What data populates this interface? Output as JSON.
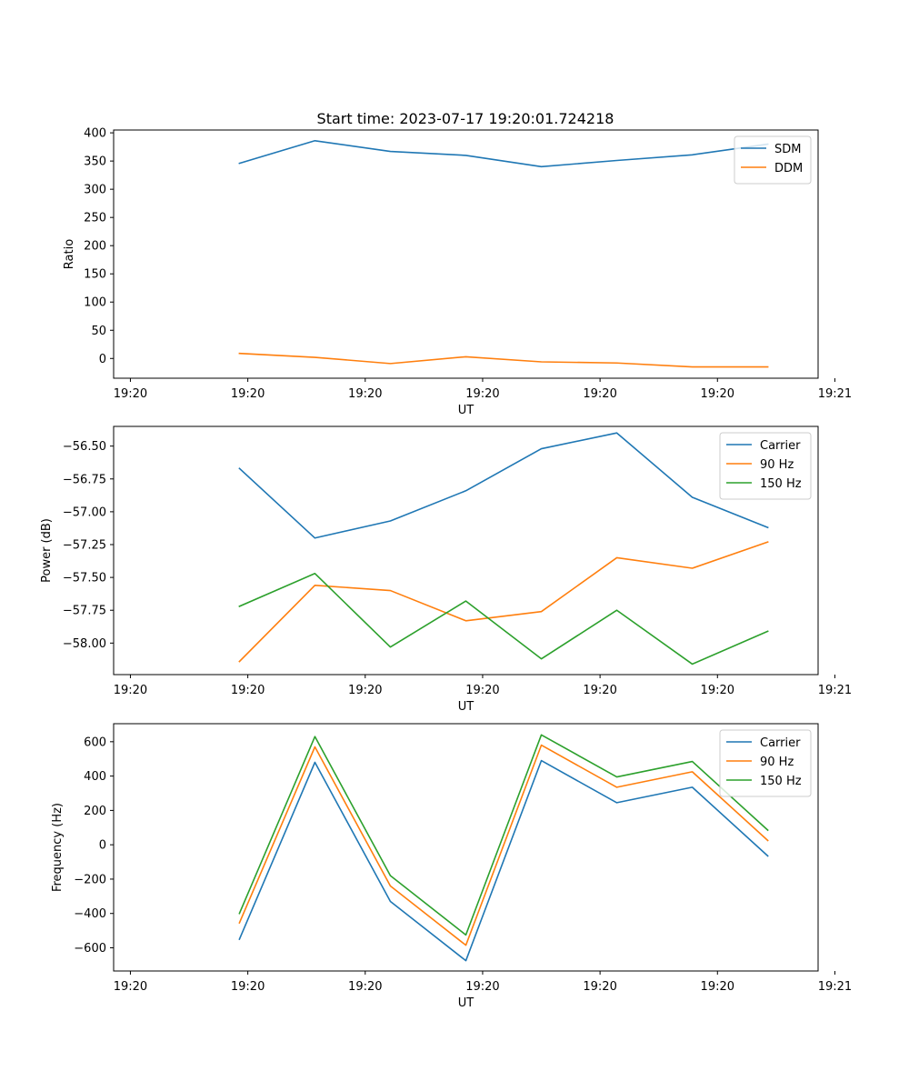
{
  "figure_title": "Start time: 2023-07-17 19:20:01.724218",
  "colors": {
    "blue": "#1f77b4",
    "orange": "#ff7f0e",
    "green": "#2ca02c"
  },
  "chart_data": [
    {
      "type": "line",
      "title": "Start time: 2023-07-17 19:20:01.724218",
      "xlabel": "UT",
      "ylabel": "Ratio",
      "x": [
        0.75,
        1.2,
        1.65,
        2.1,
        2.55,
        3.0,
        3.45,
        3.9
      ],
      "xlim": [
        0.0,
        4.2
      ],
      "xticks": [
        0.1,
        0.8,
        1.5,
        2.2,
        2.9,
        3.6,
        4.3
      ],
      "xtick_labels": [
        "19:20",
        "19:20",
        "19:20",
        "19:20",
        "19:20",
        "19:20",
        "19:21"
      ],
      "ylim": [
        -35,
        405
      ],
      "yticks": [
        0,
        50,
        100,
        150,
        200,
        250,
        300,
        350,
        400
      ],
      "ytick_labels": [
        "0",
        "50",
        "100",
        "150",
        "200",
        "250",
        "300",
        "350",
        "400"
      ],
      "legend": "top-right",
      "series": [
        {
          "name": "SDM",
          "color": "#1f77b4",
          "values": [
            346,
            386,
            367,
            360,
            340,
            351,
            361,
            380
          ]
        },
        {
          "name": "DDM",
          "color": "#ff7f0e",
          "values": [
            9,
            2,
            -9,
            3,
            -6,
            -8,
            -15,
            -15
          ]
        }
      ]
    },
    {
      "type": "line",
      "title": "",
      "xlabel": "UT",
      "ylabel": "Power (dB)",
      "x": [
        0.75,
        1.2,
        1.65,
        2.1,
        2.55,
        3.0,
        3.45,
        3.9
      ],
      "xlim": [
        0.0,
        4.2
      ],
      "xticks": [
        0.1,
        0.8,
        1.5,
        2.2,
        2.9,
        3.6,
        4.3
      ],
      "xtick_labels": [
        "19:20",
        "19:20",
        "19:20",
        "19:20",
        "19:20",
        "19:20",
        "19:21"
      ],
      "ylim": [
        -58.24,
        -56.35
      ],
      "yticks": [
        -58.0,
        -57.75,
        -57.5,
        -57.25,
        -57.0,
        -56.75,
        -56.5
      ],
      "ytick_labels": [
        "−58.00",
        "−57.75",
        "−57.50",
        "−57.25",
        "−57.00",
        "−56.75",
        "−56.50"
      ],
      "legend": "top-right",
      "series": [
        {
          "name": "Carrier",
          "color": "#1f77b4",
          "values": [
            -56.67,
            -57.2,
            -57.07,
            -56.84,
            -56.52,
            -56.4,
            -56.89,
            -57.12
          ]
        },
        {
          "name": "90 Hz",
          "color": "#ff7f0e",
          "values": [
            -58.14,
            -57.56,
            -57.6,
            -57.83,
            -57.76,
            -57.35,
            -57.43,
            -57.23
          ]
        },
        {
          "name": "150 Hz",
          "color": "#2ca02c",
          "values": [
            -57.72,
            -57.47,
            -58.03,
            -57.68,
            -58.12,
            -57.75,
            -58.16,
            -57.91
          ]
        }
      ]
    },
    {
      "type": "line",
      "title": "",
      "xlabel": "UT",
      "ylabel": "Frequency (Hz)",
      "x": [
        0.75,
        1.2,
        1.65,
        2.1,
        2.55,
        3.0,
        3.45,
        3.9
      ],
      "xlim": [
        0.0,
        4.2
      ],
      "xticks": [
        0.1,
        0.8,
        1.5,
        2.2,
        2.9,
        3.6,
        4.3
      ],
      "xtick_labels": [
        "19:20",
        "19:20",
        "19:20",
        "19:20",
        "19:20",
        "19:20",
        "19:21"
      ],
      "ylim": [
        -735,
        705
      ],
      "yticks": [
        -600,
        -400,
        -200,
        0,
        200,
        400,
        600
      ],
      "ytick_labels": [
        "−600",
        "−400",
        "−200",
        "0",
        "200",
        "400",
        "600"
      ],
      "legend": "top-right",
      "series": [
        {
          "name": "Carrier",
          "color": "#1f77b4",
          "values": [
            -550,
            480,
            -330,
            -675,
            490,
            245,
            335,
            -65
          ]
        },
        {
          "name": "90 Hz",
          "color": "#ff7f0e",
          "values": [
            -455,
            570,
            -240,
            -585,
            580,
            335,
            425,
            25
          ]
        },
        {
          "name": "150 Hz",
          "color": "#2ca02c",
          "values": [
            -400,
            630,
            -180,
            -525,
            640,
            395,
            485,
            85
          ]
        }
      ]
    }
  ]
}
